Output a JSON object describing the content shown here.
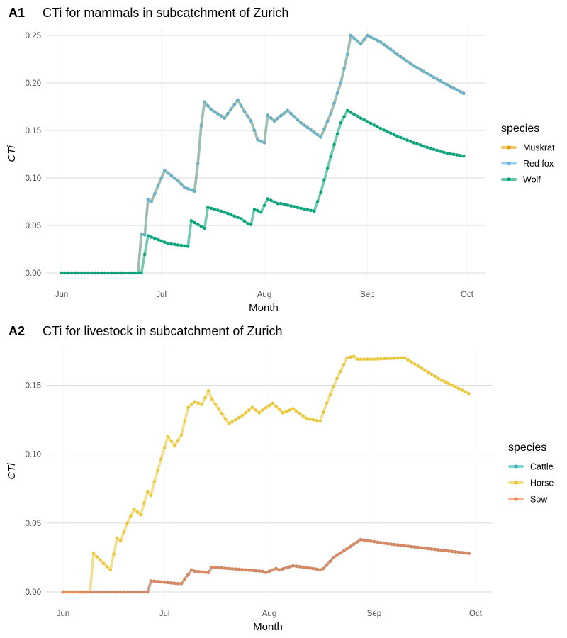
{
  "chart_data": [
    {
      "type": "line",
      "panel_tag": "A1",
      "title": "CTi for mammals in subcatchment of Zurich",
      "xlabel": "Month",
      "ylabel": "CTi",
      "x_ticks": [
        "Jun",
        "Jul",
        "Aug",
        "Sep",
        "Oct"
      ],
      "y_ticks": [
        "0.00",
        "0.05",
        "0.10",
        "0.15",
        "0.20",
        "0.25"
      ],
      "ylim": [
        0,
        0.25
      ],
      "xlim": [
        "06-01",
        "10-01"
      ],
      "grid": "horizontal",
      "legend_title": "species",
      "legend_position": "right",
      "series": [
        {
          "name": "Muskrat",
          "color": "#E69F00",
          "x": [
            "06-01",
            "06-24",
            "06-25",
            "06-26",
            "06-27",
            "06-28",
            "07-02",
            "07-06",
            "07-08",
            "07-11",
            "07-12",
            "07-13",
            "07-14",
            "07-16",
            "07-20",
            "07-24",
            "07-26",
            "07-28",
            "07-30",
            "08-01",
            "08-02",
            "08-04",
            "08-08",
            "08-12",
            "08-16",
            "08-18",
            "08-21",
            "08-24",
            "08-26",
            "08-27",
            "08-28",
            "08-30",
            "09-01",
            "09-05",
            "09-10",
            "09-15",
            "09-20",
            "09-25",
            "09-30"
          ],
          "y": [
            0,
            0,
            0.041,
            0.04,
            0.077,
            0.075,
            0.108,
            0.097,
            0.09,
            0.086,
            0.115,
            0.155,
            0.18,
            0.172,
            0.163,
            0.182,
            0.17,
            0.16,
            0.14,
            0.137,
            0.166,
            0.16,
            0.171,
            0.158,
            0.148,
            0.143,
            0.168,
            0.2,
            0.23,
            0.25,
            0.247,
            0.241,
            0.25,
            0.243,
            0.23,
            0.218,
            0.208,
            0.198,
            0.189
          ]
        },
        {
          "name": "Red fox",
          "color": "#56B4E9",
          "x": [
            "06-01",
            "06-24",
            "06-25",
            "06-26",
            "06-27",
            "06-28",
            "07-02",
            "07-06",
            "07-08",
            "07-11",
            "07-12",
            "07-13",
            "07-14",
            "07-16",
            "07-20",
            "07-24",
            "07-26",
            "07-28",
            "07-30",
            "08-01",
            "08-02",
            "08-04",
            "08-08",
            "08-12",
            "08-16",
            "08-18",
            "08-21",
            "08-24",
            "08-26",
            "08-27",
            "08-28",
            "08-30",
            "09-01",
            "09-05",
            "09-10",
            "09-15",
            "09-20",
            "09-25",
            "09-30"
          ],
          "y": [
            0,
            0,
            0.041,
            0.04,
            0.077,
            0.075,
            0.108,
            0.097,
            0.09,
            0.086,
            0.115,
            0.155,
            0.18,
            0.172,
            0.163,
            0.182,
            0.17,
            0.16,
            0.14,
            0.137,
            0.166,
            0.16,
            0.171,
            0.158,
            0.148,
            0.143,
            0.168,
            0.2,
            0.23,
            0.25,
            0.247,
            0.241,
            0.25,
            0.243,
            0.23,
            0.218,
            0.208,
            0.198,
            0.189
          ]
        },
        {
          "name": "Wolf",
          "color": "#009E73",
          "x": [
            "06-01",
            "06-24",
            "06-25",
            "06-27",
            "07-03",
            "07-09",
            "07-10",
            "07-14",
            "07-15",
            "07-20",
            "07-25",
            "07-27",
            "07-28",
            "07-29",
            "07-31",
            "08-02",
            "08-05",
            "08-06",
            "08-12",
            "08-16",
            "08-18",
            "08-20",
            "08-22",
            "08-24",
            "08-26",
            "08-28",
            "08-30",
            "09-05",
            "09-10",
            "09-15",
            "09-20",
            "09-25",
            "09-30"
          ],
          "y": [
            0,
            0,
            0.0,
            0.039,
            0.031,
            0.028,
            0.055,
            0.047,
            0.069,
            0.064,
            0.057,
            0.052,
            0.051,
            0.067,
            0.064,
            0.078,
            0.073,
            0.073,
            0.068,
            0.065,
            0.085,
            0.11,
            0.135,
            0.158,
            0.171,
            0.167,
            0.163,
            0.152,
            0.144,
            0.137,
            0.131,
            0.126,
            0.123
          ]
        }
      ]
    },
    {
      "type": "line",
      "panel_tag": "A2",
      "title": "CTi for livestock in subcatchment of Zurich",
      "xlabel": "Month",
      "ylabel": "CTi",
      "x_ticks": [
        "Jun",
        "Jul",
        "Aug",
        "Sep",
        "Oct"
      ],
      "y_ticks": [
        "0.00",
        "0.05",
        "0.10",
        "0.15"
      ],
      "ylim": [
        0,
        0.175
      ],
      "xlim": [
        "06-01",
        "10-01"
      ],
      "grid": "horizontal",
      "legend_title": "species",
      "legend_position": "right",
      "series": [
        {
          "name": "Cattle",
          "color": "#35B5BC",
          "x": [
            "06-01",
            "06-26",
            "06-27",
            "07-01",
            "07-05",
            "07-06",
            "07-09",
            "07-10",
            "07-14",
            "07-15",
            "07-20",
            "07-25",
            "07-30",
            "07-31",
            "08-03",
            "08-04",
            "08-08",
            "08-14",
            "08-16",
            "08-17",
            "08-20",
            "08-25",
            "08-28",
            "09-05",
            "09-15",
            "09-29"
          ],
          "y": [
            0,
            0,
            0.008,
            0.007,
            0.006,
            0.006,
            0.016,
            0.015,
            0.014,
            0.018,
            0.017,
            0.016,
            0.015,
            0.014,
            0.017,
            0.016,
            0.019,
            0.017,
            0.016,
            0.017,
            0.025,
            0.033,
            0.038,
            0.035,
            0.032,
            0.028
          ]
        },
        {
          "name": "Horse",
          "color": "#E8C433",
          "x": [
            "06-01",
            "06-09",
            "06-10",
            "06-12",
            "06-15",
            "06-17",
            "06-18",
            "06-20",
            "06-22",
            "06-24",
            "06-26",
            "06-27",
            "06-28",
            "07-02",
            "07-04",
            "07-06",
            "07-08",
            "07-10",
            "07-12",
            "07-14",
            "07-15",
            "07-17",
            "07-20",
            "07-24",
            "07-27",
            "07-29",
            "07-30",
            "08-02",
            "08-05",
            "08-08",
            "08-12",
            "08-16",
            "08-18",
            "08-21",
            "08-24",
            "08-26",
            "08-27",
            "09-01",
            "09-10",
            "09-20",
            "09-29"
          ],
          "y": [
            0,
            0,
            0.028,
            0.023,
            0.016,
            0.039,
            0.037,
            0.05,
            0.06,
            0.056,
            0.073,
            0.07,
            0.08,
            0.113,
            0.106,
            0.114,
            0.134,
            0.138,
            0.136,
            0.146,
            0.14,
            0.133,
            0.122,
            0.128,
            0.134,
            0.13,
            0.132,
            0.137,
            0.13,
            0.133,
            0.126,
            0.124,
            0.137,
            0.155,
            0.17,
            0.171,
            0.169,
            0.169,
            0.17,
            0.155,
            0.144
          ]
        },
        {
          "name": "Sow",
          "color": "#F07F54",
          "x": [
            "06-01",
            "06-26",
            "06-27",
            "07-01",
            "07-05",
            "07-06",
            "07-09",
            "07-10",
            "07-14",
            "07-15",
            "07-20",
            "07-25",
            "07-30",
            "07-31",
            "08-03",
            "08-04",
            "08-08",
            "08-14",
            "08-16",
            "08-17",
            "08-20",
            "08-25",
            "08-28",
            "09-05",
            "09-15",
            "09-29"
          ],
          "y": [
            0,
            0,
            0.008,
            0.007,
            0.006,
            0.006,
            0.016,
            0.015,
            0.014,
            0.018,
            0.017,
            0.016,
            0.015,
            0.014,
            0.017,
            0.016,
            0.019,
            0.017,
            0.016,
            0.017,
            0.025,
            0.033,
            0.038,
            0.035,
            0.032,
            0.028
          ]
        }
      ]
    }
  ]
}
